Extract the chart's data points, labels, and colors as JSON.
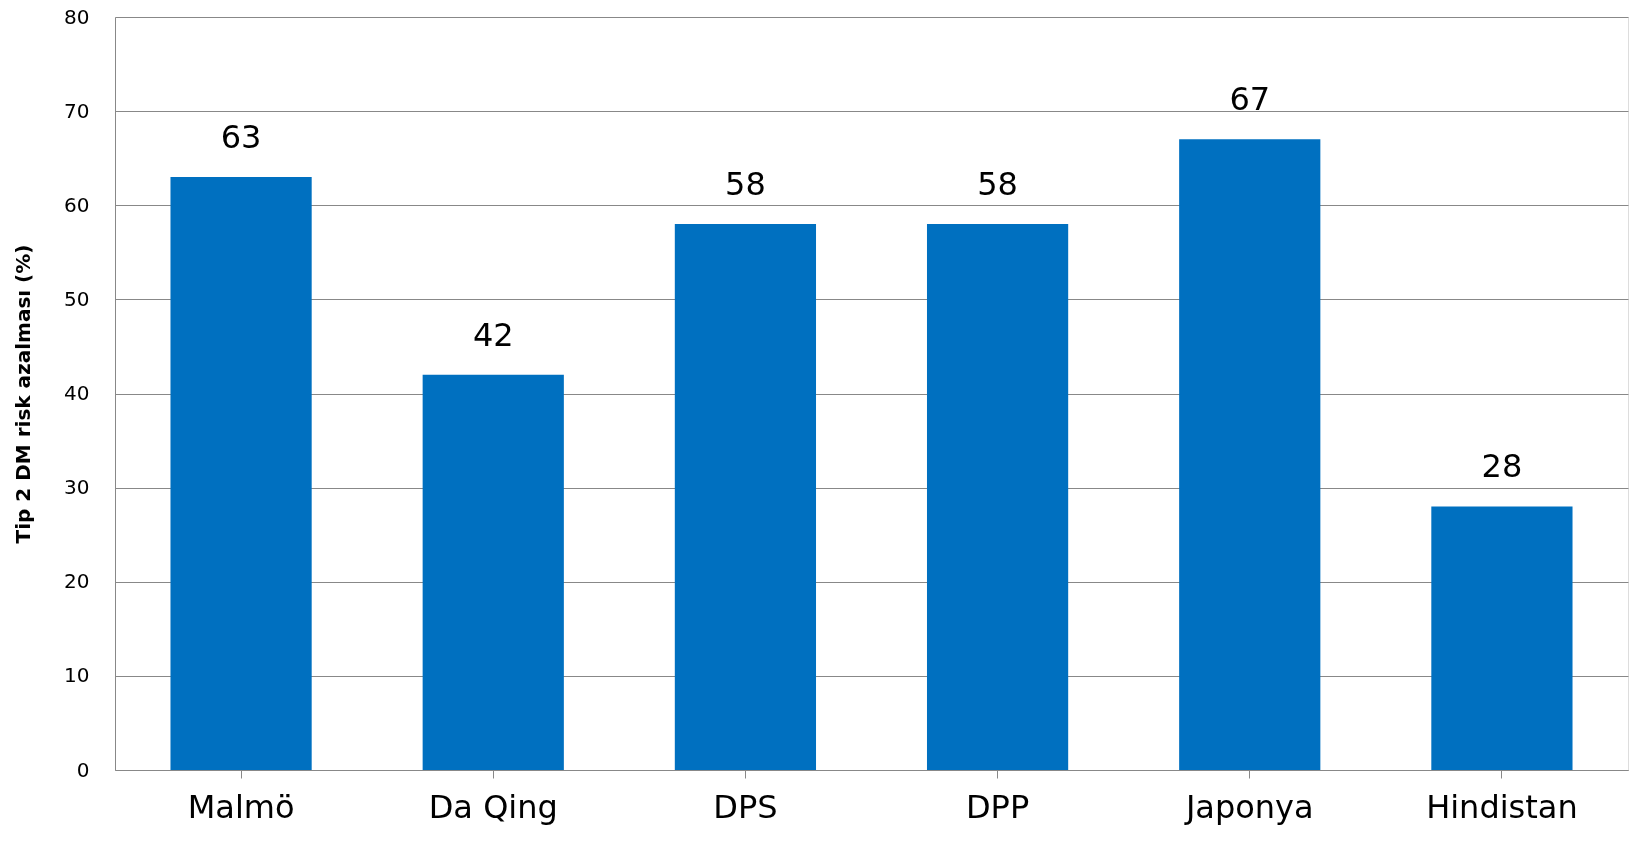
{
  "chart_data": {
    "type": "bar",
    "ylabel": "Tip 2 DM risk azalması (%)",
    "categories": [
      "Malmö",
      "Da Qing",
      "DPS",
      "DPP",
      "Japonya",
      "Hindistan"
    ],
    "values": [
      63,
      42,
      58,
      58,
      67,
      28
    ],
    "color": "#0070c0",
    "ylim": [
      0,
      80
    ],
    "yticks": [
      0,
      10,
      20,
      30,
      40,
      50,
      60,
      70,
      80
    ],
    "grid": "y",
    "data_labels": true
  }
}
